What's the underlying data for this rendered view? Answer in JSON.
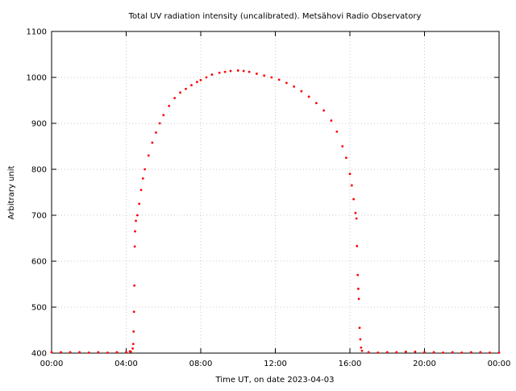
{
  "chart_data": {
    "type": "scatter",
    "title": "Total UV radiation intensity (uncalibrated). Metsähovi Radio Observatory",
    "xlabel": "Time UT, on date 2023-04-03",
    "ylabel": "Arbitrary unit",
    "xlim": [
      0,
      24
    ],
    "ylim": [
      400,
      1100
    ],
    "xticks": [
      0,
      4,
      8,
      12,
      16,
      20,
      24
    ],
    "xtick_labels": [
      "00:00",
      "04:00",
      "08:00",
      "12:00",
      "16:00",
      "20:00",
      "00:00"
    ],
    "yticks": [
      400,
      500,
      600,
      700,
      800,
      900,
      1000,
      1100
    ],
    "ytick_labels": [
      "400",
      "500",
      "600",
      "700",
      "800",
      "900",
      "1000",
      "1100"
    ],
    "grid": true,
    "legend": "none",
    "marker_color": "#ff0000",
    "series": [
      {
        "points": [
          [
            0.0,
            402
          ],
          [
            0.5,
            402
          ],
          [
            1.0,
            402
          ],
          [
            1.5,
            402
          ],
          [
            2.0,
            401
          ],
          [
            2.5,
            402
          ],
          [
            3.0,
            401
          ],
          [
            3.5,
            402
          ],
          [
            4.0,
            402
          ],
          [
            4.2,
            404
          ],
          [
            4.25,
            403
          ],
          [
            4.35,
            410
          ],
          [
            4.38,
            420
          ],
          [
            4.4,
            447
          ],
          [
            4.42,
            490
          ],
          [
            4.44,
            547
          ],
          [
            4.46,
            632
          ],
          [
            4.48,
            665
          ],
          [
            4.52,
            688
          ],
          [
            4.6,
            700
          ],
          [
            4.7,
            725
          ],
          [
            4.8,
            755
          ],
          [
            4.9,
            780
          ],
          [
            5.0,
            800
          ],
          [
            5.2,
            830
          ],
          [
            5.4,
            858
          ],
          [
            5.6,
            880
          ],
          [
            5.8,
            900
          ],
          [
            6.0,
            918
          ],
          [
            6.3,
            938
          ],
          [
            6.6,
            955
          ],
          [
            6.9,
            967
          ],
          [
            7.2,
            975
          ],
          [
            7.5,
            983
          ],
          [
            7.8,
            990
          ],
          [
            8.0,
            994
          ],
          [
            8.3,
            1000
          ],
          [
            8.6,
            1006
          ],
          [
            9.0,
            1010
          ],
          [
            9.3,
            1012
          ],
          [
            9.6,
            1014
          ],
          [
            10.0,
            1015
          ],
          [
            10.3,
            1014
          ],
          [
            10.6,
            1012
          ],
          [
            11.0,
            1008
          ],
          [
            11.4,
            1004
          ],
          [
            11.8,
            1000
          ],
          [
            12.2,
            995
          ],
          [
            12.6,
            988
          ],
          [
            13.0,
            980
          ],
          [
            13.4,
            970
          ],
          [
            13.8,
            958
          ],
          [
            14.2,
            944
          ],
          [
            14.6,
            928
          ],
          [
            15.0,
            906
          ],
          [
            15.3,
            882
          ],
          [
            15.6,
            850
          ],
          [
            15.8,
            825
          ],
          [
            16.0,
            790
          ],
          [
            16.1,
            765
          ],
          [
            16.2,
            735
          ],
          [
            16.3,
            705
          ],
          [
            16.35,
            693
          ],
          [
            16.38,
            633
          ],
          [
            16.42,
            570
          ],
          [
            16.45,
            540
          ],
          [
            16.48,
            518
          ],
          [
            16.52,
            455
          ],
          [
            16.56,
            430
          ],
          [
            16.6,
            412
          ],
          [
            16.65,
            405
          ],
          [
            17.0,
            402
          ],
          [
            17.5,
            401
          ],
          [
            18.0,
            402
          ],
          [
            18.5,
            402
          ],
          [
            19.0,
            403
          ],
          [
            19.5,
            403
          ],
          [
            20.0,
            402
          ],
          [
            20.5,
            402
          ],
          [
            21.0,
            401
          ],
          [
            21.5,
            402
          ],
          [
            22.0,
            401
          ],
          [
            22.5,
            402
          ],
          [
            23.0,
            402
          ],
          [
            23.5,
            401
          ],
          [
            24.0,
            401
          ]
        ]
      }
    ]
  }
}
